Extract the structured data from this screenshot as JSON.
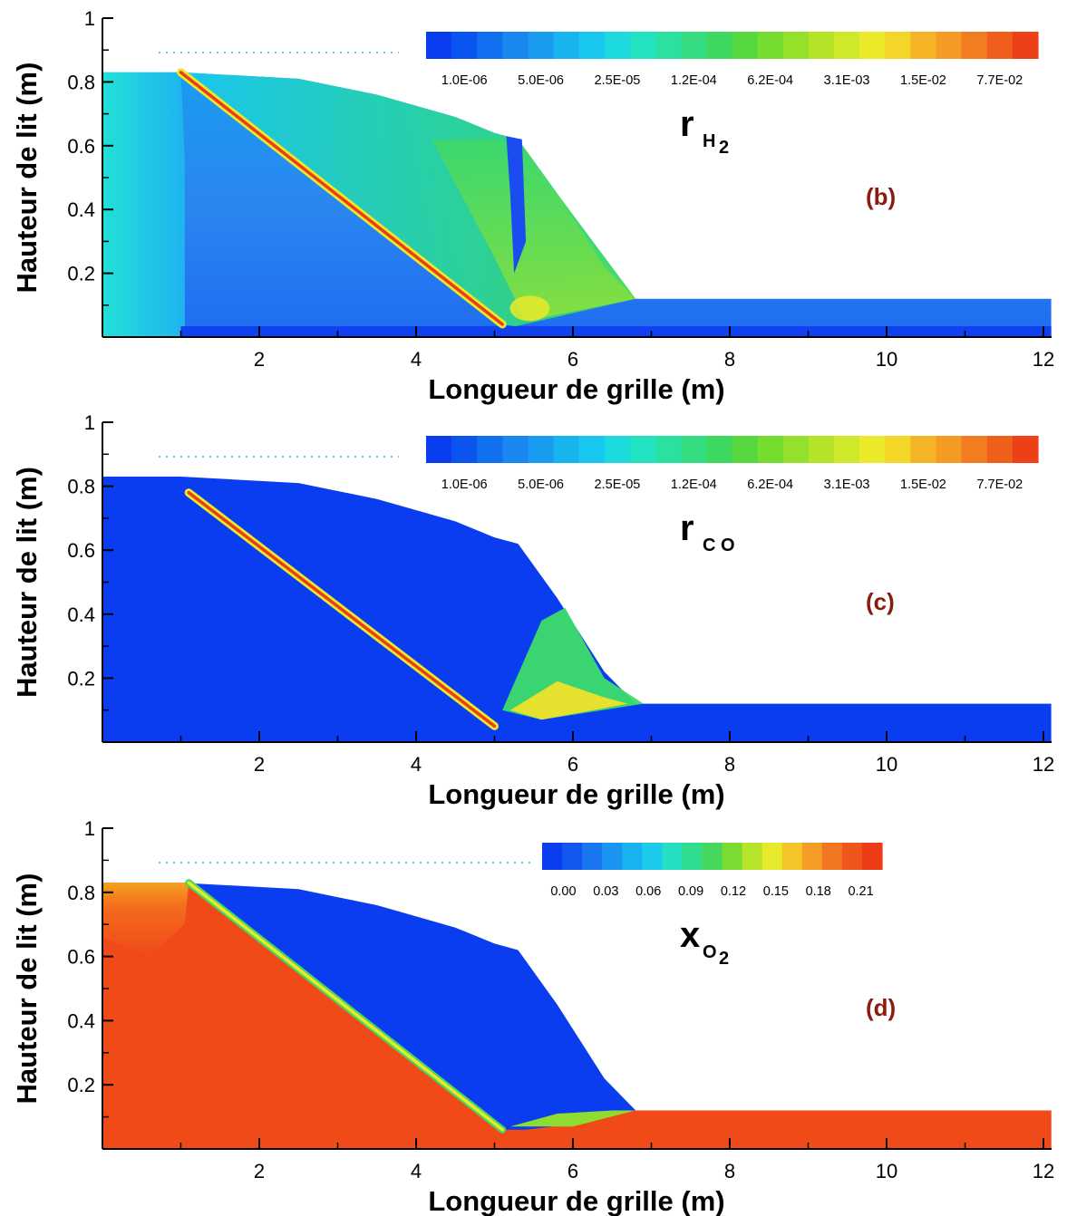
{
  "chart_data": [
    {
      "type": "heatmap",
      "panel_label": "(b)",
      "variable": {
        "symbol": "r",
        "subscript": "H",
        "sub_sub": "2"
      },
      "xlabel": "Longueur de grille (m)",
      "ylabel": "Hauteur de lit (m)",
      "xlim": [
        0,
        12.1
      ],
      "ylim": [
        0,
        1
      ],
      "x_ticks": [
        "2",
        "4",
        "6",
        "8",
        "10",
        "12"
      ],
      "y_ticks": [
        "0.2",
        "0.4",
        "0.6",
        "0.8",
        "1"
      ],
      "colorbar": {
        "scale": "log",
        "tick_labels": [
          "1.0E-06",
          "5.0E-06",
          "2.5E-05",
          "1.2E-04",
          "6.2E-04",
          "3.1E-03",
          "1.5E-02",
          "7.7E-02"
        ]
      },
      "bed_profile": {
        "x": [
          0,
          1.0,
          2.5,
          3.5,
          4.5,
          5.0,
          5.3,
          5.8,
          6.4,
          6.8,
          12.1
        ],
        "height": [
          0.83,
          0.83,
          0.81,
          0.76,
          0.69,
          0.64,
          0.62,
          0.45,
          0.22,
          0.12,
          0.12
        ]
      },
      "reaction_front": {
        "x": [
          1.0,
          5.1
        ],
        "height": [
          0.83,
          0.04
        ]
      }
    },
    {
      "type": "heatmap",
      "panel_label": "(c)",
      "variable": {
        "symbol": "r",
        "subscript": "C O",
        "sub_sub": ""
      },
      "xlabel": "Longueur de grille (m)",
      "ylabel": "Hauteur de lit (m)",
      "xlim": [
        0,
        12.1
      ],
      "ylim": [
        0,
        1
      ],
      "x_ticks": [
        "2",
        "4",
        "6",
        "8",
        "10",
        "12"
      ],
      "y_ticks": [
        "0.2",
        "0.4",
        "0.6",
        "0.8",
        "1"
      ],
      "colorbar": {
        "scale": "log",
        "tick_labels": [
          "1.0E-06",
          "5.0E-06",
          "2.5E-05",
          "1.2E-04",
          "6.2E-04",
          "3.1E-03",
          "1.5E-02",
          "7.7E-02"
        ]
      },
      "bed_profile": {
        "x": [
          0,
          1.0,
          2.5,
          3.5,
          4.5,
          5.0,
          5.3,
          5.8,
          6.4,
          6.8,
          12.1
        ],
        "height": [
          0.83,
          0.83,
          0.81,
          0.76,
          0.69,
          0.64,
          0.62,
          0.45,
          0.22,
          0.12,
          0.12
        ]
      },
      "reaction_front": {
        "x": [
          1.1,
          5.0
        ],
        "height": [
          0.78,
          0.05
        ]
      }
    },
    {
      "type": "heatmap",
      "panel_label": "(d)",
      "variable": {
        "symbol": "x",
        "subscript": "O",
        "sub_sub": "2"
      },
      "xlabel": "Longueur de grille (m)",
      "ylabel": "Hauteur de lit (m)",
      "xlim": [
        0,
        12.1
      ],
      "ylim": [
        0,
        1
      ],
      "x_ticks": [
        "2",
        "4",
        "6",
        "8",
        "10",
        "12"
      ],
      "y_ticks": [
        "0.2",
        "0.4",
        "0.6",
        "0.8",
        "1"
      ],
      "colorbar": {
        "scale": "linear",
        "tick_labels": [
          "0.00",
          "0.03",
          "0.06",
          "0.09",
          "0.12",
          "0.15",
          "0.18",
          "0.21"
        ]
      },
      "bed_profile": {
        "x": [
          0,
          1.0,
          2.5,
          3.5,
          4.5,
          5.0,
          5.3,
          5.8,
          6.4,
          6.8,
          12.1
        ],
        "height": [
          0.83,
          0.83,
          0.81,
          0.76,
          0.69,
          0.64,
          0.62,
          0.45,
          0.22,
          0.12,
          0.12
        ]
      },
      "reaction_front": {
        "x": [
          1.1,
          5.1
        ],
        "height": [
          0.83,
          0.06
        ]
      }
    }
  ]
}
